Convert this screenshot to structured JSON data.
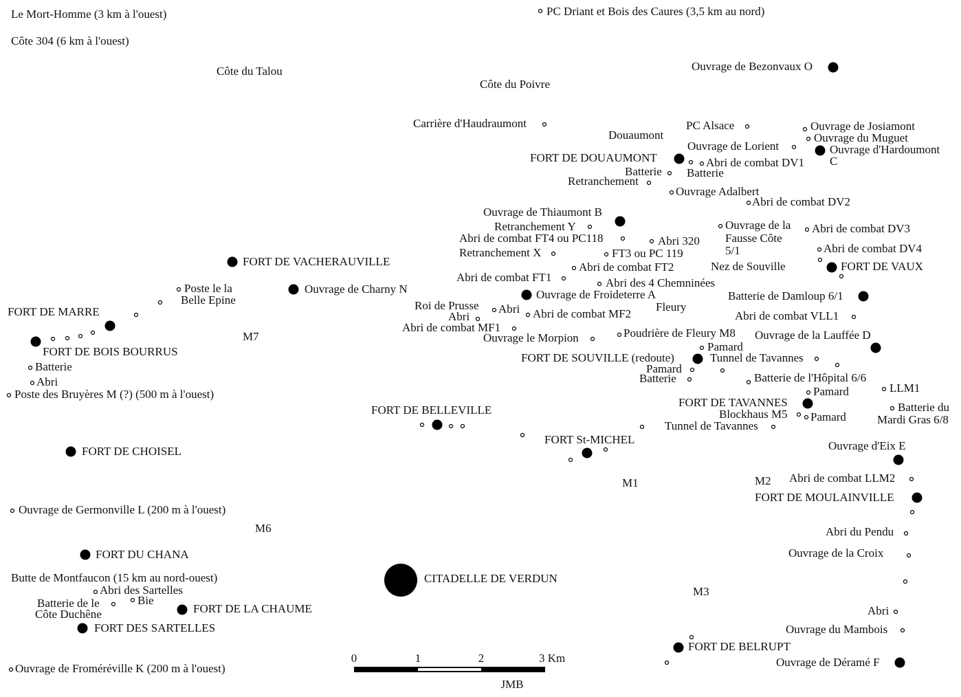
{
  "labels": [
    "Le Mort-Homme (3 km à l'ouest)",
    "Côte 304 (6 km à l'ouest)",
    "Côte du Talou",
    "PC Driant et Bois des Caures (3,5 km au nord)",
    "Ouvrage de Bezonvaux O",
    "Côte du Poivre",
    "Carrière d'Haudraumont",
    "Douaumont",
    "PC Alsace",
    "Ouvrage de Josiamont",
    "Ouvrage du Muguet",
    "Ouvrage de Lorient",
    "Ouvrage d'Hardoumont",
    "C",
    "FORT DE DOUAUMONT",
    "Abri de combat DV1",
    "Batterie",
    "Batterie",
    "Retranchement",
    "Ouvrage Adalbert",
    "Abri de combat DV2",
    "Ouvrage de Thiaumont B",
    "Retranchement Y",
    "Ouvrage de la",
    "Abri de combat DV3",
    "Abri de combat FT4 ou PC118",
    "Fausse Côte",
    "Abri 320",
    "5/1",
    "Abri de combat DV4",
    "Retranchement X",
    "FT3 ou PC 119",
    "FORT DE VACHERAUVILLE",
    "Nez de Souville",
    "Abri de combat FT2",
    "FORT DE VAUX",
    "Abri de combat FT1",
    "Abri des 4 Chemninées",
    "Poste le la",
    "Ouvrage de Charny  N",
    "Ouvrage de Froideterre A",
    "Batterie de Damloup 6/1",
    "Belle Epine",
    "Roi de Prusse",
    "Abri",
    "Fleury",
    "FORT DE MARRE",
    "Abri de combat MF2",
    "Abri",
    "Abri de combat VLL1",
    "Abri de combat MF1",
    "Poudrière de Fleury M8",
    "M7",
    "Ouvrage de la Lauffée D",
    "Ouvrage le Morpion",
    "Pamard",
    "FORT DE BOIS BOURRUS",
    "FORT DE SOUVILLE (redoute)",
    "Tunnel de Tavannes",
    "Batterie",
    "Pamard",
    "Batterie",
    "Batterie de l'Hôpital 6/6",
    "Abri",
    "LLM1",
    "Pamard",
    "Poste des Bruyères  M (?) (500 m à l'ouest)",
    "FORT DE TAVANNES",
    "Batterie du",
    "FORT DE BELLEVILLE",
    "Blockhaus M5",
    "Pamard",
    "Mardi Gras 6/8",
    "Tunnel de Tavannes",
    "FORT St-MICHEL",
    "Ouvrage d'Eix E",
    "FORT DE CHOISEL",
    "Abri de combat LLM2",
    "M2",
    "M1",
    "FORT DE MOULAINVILLE",
    "Ouvrage de Germonville L  (200 m à l'ouest)",
    "M6",
    "Abri du Pendu",
    "FORT DU CHANA",
    "Ouvrage de la Croix",
    "Butte de Montfaucon (15 km au nord-ouest)",
    "CITADELLE DE VERDUN",
    "Abri des Sartelles",
    "M3",
    "Bie",
    "Batterie de le",
    "FORT DE LA CHAUME",
    "Abri",
    "Côte Duchêne",
    "FORT DES SARTELLES",
    "Ouvrage du Mambois",
    "FORT DE BELRUPT",
    "Ouvrage de Déramé F",
    "Ouvrage de Froméréville K  (200 m à l'ouest)"
  ],
  "scale": {
    "ticks": [
      "0",
      "1",
      "2",
      "3 Km"
    ],
    "author": "JMB"
  }
}
